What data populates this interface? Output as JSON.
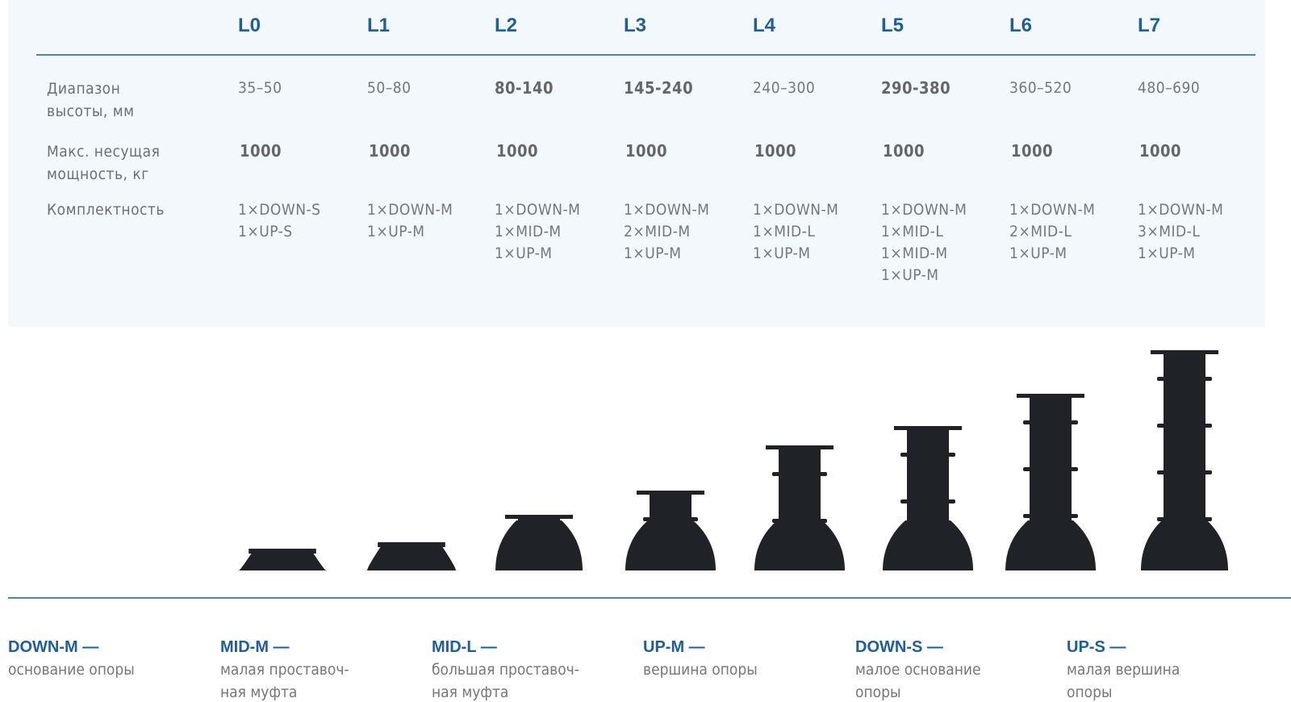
{
  "columns": [
    "L0",
    "L1",
    "L2",
    "L3",
    "L4",
    "L5",
    "L6",
    "L7"
  ],
  "rows": [
    {
      "label": "Диапазон\nвысоты, мм",
      "values": [
        "35–50",
        "50–80",
        "80-140",
        "145-240",
        "240–300",
        "290-380",
        "360–520",
        "480–690"
      ],
      "bold": [
        false,
        false,
        true,
        true,
        false,
        true,
        false,
        false
      ]
    },
    {
      "label": "Макс. несущая\nмощность, кг",
      "values": [
        "1000",
        "1000",
        "1000",
        "1000",
        "1000",
        "1000",
        "1000",
        "1000"
      ],
      "bold": [
        true,
        true,
        true,
        true,
        true,
        true,
        true,
        true
      ]
    },
    {
      "label": "Комплектность",
      "values": [
        "1×DOWN-S\n1×UP-S",
        "1×DOWN-M\n1×UP-M",
        "1×DOWN-M\n1×MID-M\n1×UP-M",
        "1×DOWN-M\n2×MID-M\n1×UP-M",
        "1×DOWN-M\n1×MID-L\n1×UP-M",
        "1×DOWN-M\n1×MID-L\n1×MID-M\n1×UP-M",
        "1×DOWN-M\n2×MID-L\n1×UP-M",
        "1×DOWN-M\n3×MID-L\n1×UP-M"
      ],
      "bold": [
        false,
        false,
        false,
        false,
        false,
        false,
        false,
        false
      ]
    }
  ],
  "legend": [
    {
      "title": "DOWN-M —",
      "desc": "основание опоры"
    },
    {
      "title": "MID-M —",
      "desc": "малая проставоч-\nная муфта"
    },
    {
      "title": "MID-L —",
      "desc": "большая проставоч-\nная муфта"
    },
    {
      "title": "UP-M —",
      "desc": "вершина опоры"
    },
    {
      "title": "DOWN-S —",
      "desc": "малое основание\nопоры"
    },
    {
      "title": "UP-S —",
      "desc": "малая вершина\nопоры"
    }
  ],
  "colors": {
    "accent": "#1f5f99",
    "panel": "#f3f8fc",
    "pedestal": "#1f2226"
  }
}
